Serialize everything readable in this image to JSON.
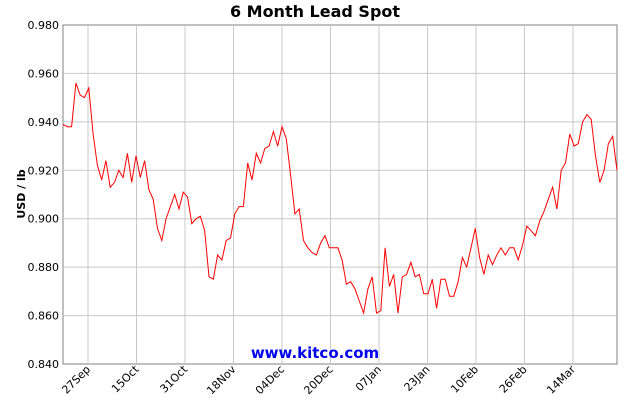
{
  "chart_data": {
    "type": "line",
    "title": "6 Month Lead Spot",
    "ylabel": "USD / lb",
    "xlabel": "",
    "ylim": [
      0.84,
      0.98
    ],
    "yticks": [
      "0.840",
      "0.860",
      "0.880",
      "0.900",
      "0.920",
      "0.940",
      "0.960",
      "0.980"
    ],
    "xticks": [
      "27Sep",
      "15Oct",
      "31Oct",
      "18Nov",
      "04Dec",
      "20Dec",
      "07Jan",
      "23Jan",
      "10Feb",
      "26Feb",
      "14Mar"
    ],
    "grid": true,
    "line_color": "#ff0000",
    "watermark": "www.kitco.com",
    "series": [
      {
        "values": [
          0.939,
          0.938,
          0.938,
          0.956,
          0.951,
          0.95,
          0.954,
          0.935,
          0.922,
          0.916,
          0.924,
          0.913,
          0.915,
          0.92,
          0.917,
          0.927,
          0.915,
          0.926,
          0.917,
          0.924,
          0.912,
          0.908,
          0.896,
          0.891,
          0.9,
          0.905,
          0.91,
          0.904,
          0.911,
          0.909,
          0.898,
          0.9,
          0.901,
          0.895,
          0.876,
          0.875,
          0.885,
          0.883,
          0.891,
          0.892,
          0.902,
          0.905,
          0.905,
          0.923,
          0.916,
          0.927,
          0.923,
          0.929,
          0.93,
          0.936,
          0.93,
          0.938,
          0.933,
          0.918,
          0.902,
          0.904,
          0.891,
          0.888,
          0.886,
          0.885,
          0.89,
          0.893,
          0.888,
          0.888,
          0.888,
          0.883,
          0.873,
          0.874,
          0.871,
          0.866,
          0.861,
          0.871,
          0.876,
          0.861,
          0.862,
          0.888,
          0.872,
          0.877,
          0.861,
          0.876,
          0.877,
          0.882,
          0.876,
          0.877,
          0.869,
          0.869,
          0.875,
          0.863,
          0.875,
          0.875,
          0.868,
          0.868,
          0.874,
          0.884,
          0.88,
          0.888,
          0.896,
          0.884,
          0.877,
          0.885,
          0.881,
          0.885,
          0.888,
          0.885,
          0.888,
          0.888,
          0.883,
          0.889,
          0.897,
          0.895,
          0.893,
          0.899,
          0.903,
          0.908,
          0.913,
          0.904,
          0.92,
          0.923,
          0.935,
          0.93,
          0.931,
          0.94,
          0.943,
          0.941,
          0.926,
          0.915,
          0.92,
          0.931,
          0.934,
          0.92
        ]
      }
    ]
  }
}
